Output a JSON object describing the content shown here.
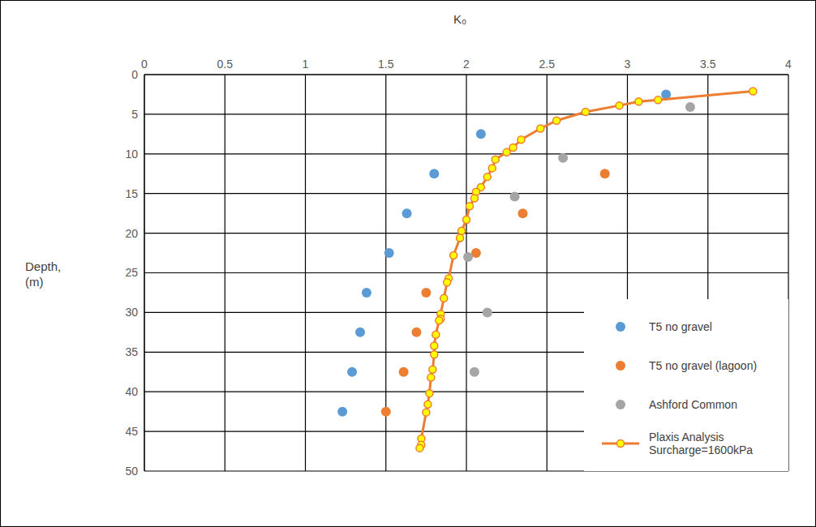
{
  "chart_data": {
    "type": "scatter",
    "xlabel": "K₀",
    "ylabel": "Depth, (m)",
    "xlim": [
      0,
      4
    ],
    "xticks": [
      0,
      0.5,
      1,
      1.5,
      2,
      2.5,
      3,
      3.5,
      4
    ],
    "ylim": [
      0,
      50
    ],
    "yticks": [
      0,
      5,
      10,
      15,
      20,
      25,
      30,
      35,
      40,
      45,
      50
    ],
    "y_inverted": true,
    "grid": true,
    "legend": "lower right",
    "series": [
      {
        "name": "T5 no gravel",
        "type": "scatter",
        "marker": "circle",
        "color": "#5B9BD5",
        "x": [
          3.24,
          2.09,
          1.8,
          1.63,
          1.52,
          1.38,
          1.34,
          1.29,
          1.23
        ],
        "values": [
          2.5,
          7.5,
          12.5,
          17.5,
          22.5,
          27.5,
          32.5,
          37.5,
          42.5
        ]
      },
      {
        "name": "T5 no gravel (lagoon)",
        "type": "scatter",
        "marker": "circle",
        "color": "#ED7D31",
        "x": [
          2.86,
          2.35,
          2.06,
          1.75,
          1.69,
          1.61,
          1.5
        ],
        "values": [
          12.5,
          17.5,
          22.5,
          27.5,
          32.5,
          37.5,
          42.5
        ]
      },
      {
        "name": "Ashford Common",
        "type": "scatter",
        "marker": "circle",
        "color": "#A5A5A5",
        "x": [
          3.39,
          2.6,
          2.3,
          2.01,
          2.13,
          2.05
        ],
        "values": [
          4.1,
          10.5,
          15.4,
          23,
          30,
          37.5
        ]
      },
      {
        "name": "Plaxis Analysis Surcharge=1600kPa",
        "type": "line",
        "marker": "circle",
        "color": "#ED7D31",
        "x": [
          3.78,
          3.19,
          3.07,
          2.95,
          2.74,
          2.56,
          2.46,
          2.34,
          2.29,
          2.25,
          2.18,
          2.16,
          2.13,
          2.09,
          2.06,
          2.05,
          2.02,
          2.0,
          1.97,
          1.96,
          1.92,
          1.89,
          1.88,
          1.86,
          1.84,
          1.84,
          1.83,
          1.81,
          1.8,
          1.8,
          1.79,
          1.78,
          1.77,
          1.76,
          1.75,
          1.72,
          1.72,
          1.71
        ],
        "values": [
          2.1,
          3.2,
          3.4,
          3.9,
          4.7,
          5.8,
          6.8,
          8.2,
          9.2,
          9.8,
          10.7,
          11.8,
          12.9,
          14.2,
          14.8,
          15.6,
          16.6,
          18.3,
          19.7,
          20.6,
          22.8,
          25.7,
          26.2,
          28.2,
          30.2,
          30.8,
          31.0,
          32.8,
          34.2,
          35.3,
          37.2,
          38.2,
          40.2,
          41.6,
          42.6,
          45.9,
          46.7,
          47.1
        ]
      }
    ]
  }
}
